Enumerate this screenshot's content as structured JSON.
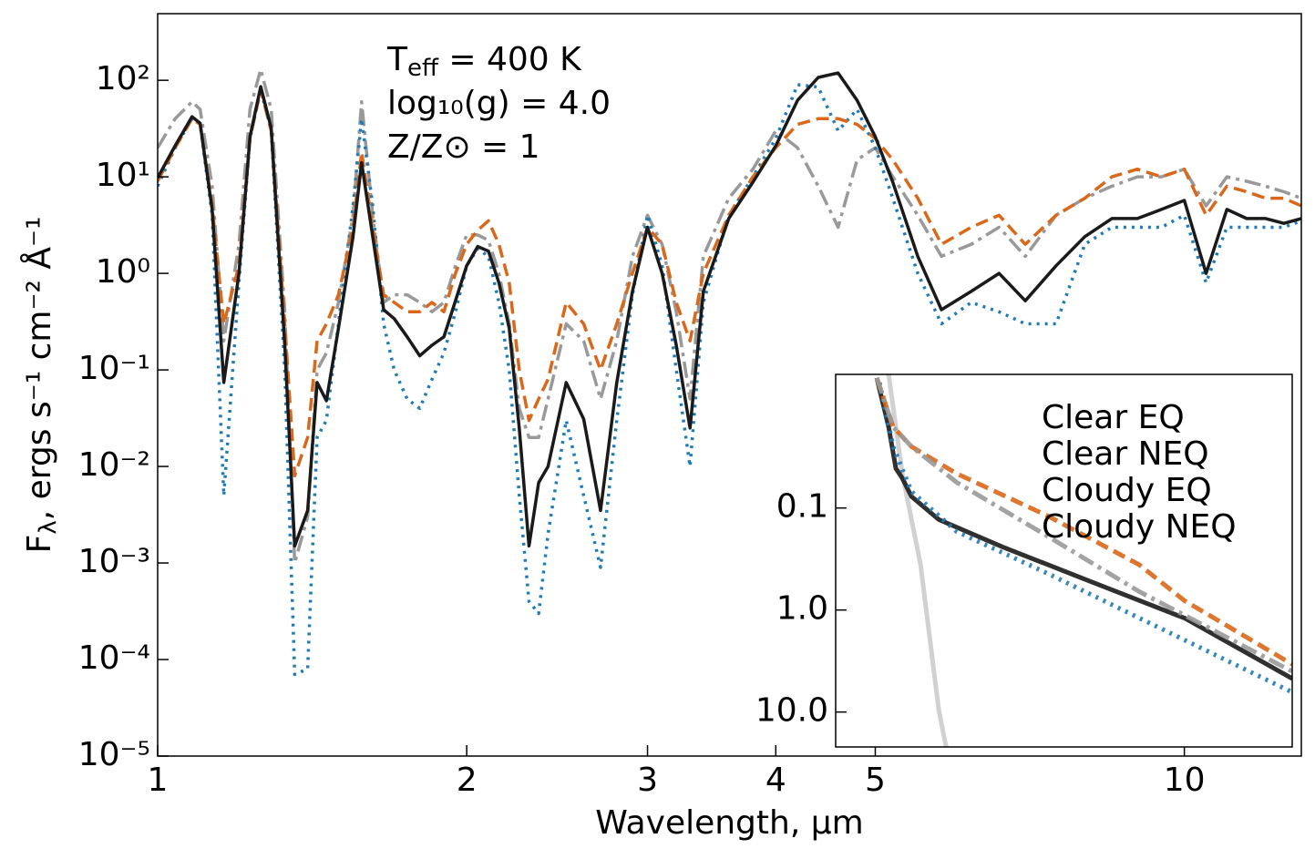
{
  "chart_data": [
    {
      "type": "line",
      "xscale": "log",
      "yscale": "log",
      "xlabel": "Wavelength, μm",
      "ylabel": [
        "F",
        "λ",
        ", ergs s⁻¹ cm⁻² Å⁻¹"
      ],
      "annotations": [
        [
          "T",
          "eff",
          " = 400 K"
        ],
        [
          "log₁₀(g) = 4.0"
        ],
        [
          "Z/Z⊙ = 1"
        ]
      ],
      "xlim": [
        1,
        13
      ],
      "ylim": [
        1e-05,
        490
      ],
      "xticks": [
        1,
        2,
        3,
        4,
        5,
        10
      ],
      "yticks": [
        {
          "value": 1e-05,
          "label": "10⁻⁵"
        },
        {
          "value": 0.0001,
          "label": "10⁻⁴"
        },
        {
          "value": 0.001,
          "label": "10⁻³"
        },
        {
          "value": 0.01,
          "label": "10⁻²"
        },
        {
          "value": 0.1,
          "label": "10⁻¹"
        },
        {
          "value": 1,
          "label": "10⁰"
        },
        {
          "value": 10,
          "label": "10¹"
        },
        {
          "value": 100,
          "label": "10²"
        }
      ],
      "x": [
        1.0,
        1.04,
        1.08,
        1.1,
        1.13,
        1.16,
        1.2,
        1.23,
        1.26,
        1.29,
        1.33,
        1.36,
        1.4,
        1.43,
        1.46,
        1.5,
        1.55,
        1.58,
        1.62,
        1.66,
        1.7,
        1.75,
        1.8,
        1.85,
        1.9,
        1.95,
        2.0,
        2.05,
        2.1,
        2.15,
        2.2,
        2.25,
        2.3,
        2.35,
        2.4,
        2.5,
        2.6,
        2.7,
        2.8,
        2.9,
        3.0,
        3.1,
        3.2,
        3.3,
        3.4,
        3.6,
        3.8,
        4.0,
        4.2,
        4.4,
        4.6,
        4.8,
        5.0,
        5.2,
        5.5,
        5.8,
        6.2,
        6.6,
        7.0,
        7.5,
        8.0,
        8.5,
        9.0,
        9.5,
        10,
        10.5,
        11,
        11.5,
        12,
        12.5,
        13
      ],
      "series": [
        {
          "color": "#999999",
          "linestyle": "dashdot",
          "values": [
            20,
            40,
            60,
            50,
            8,
            0.2,
            2,
            50,
            130,
            50,
            0.4,
            0.001,
            0.003,
            0.1,
            0.15,
            0.5,
            4,
            60,
            4,
            0.5,
            0.6,
            0.6,
            0.5,
            0.4,
            0.5,
            1.2,
            2.5,
            2.5,
            2.2,
            1,
            0.3,
            0.04,
            0.02,
            0.02,
            0.05,
            0.3,
            0.2,
            0.05,
            0.2,
            1.5,
            4,
            2,
            0.4,
            0.05,
            1.5,
            6,
            12,
            30,
            20,
            8,
            3,
            15,
            20,
            10,
            4,
            1.5,
            2,
            3,
            1.5,
            4,
            6,
            8,
            10,
            10,
            12,
            5,
            10,
            9,
            8,
            7,
            6
          ]
        },
        {
          "color": "#1f7bb6",
          "linestyle": "dotted",
          "values": [
            8,
            20,
            40,
            35,
            4,
            0.005,
            0.8,
            25,
            80,
            30,
            0.1,
            7e-05,
            8e-05,
            0.02,
            0.03,
            0.3,
            5,
            40,
            5,
            0.3,
            0.1,
            0.05,
            0.04,
            0.08,
            0.15,
            0.4,
            1.2,
            1.8,
            1.5,
            0.5,
            0.1,
            0.005,
            0.0004,
            0.0003,
            0.002,
            0.03,
            0.005,
            0.0009,
            0.03,
            0.6,
            4,
            1.2,
            0.1,
            0.01,
            0.5,
            4,
            10,
            25,
            90,
            85,
            30,
            50,
            20,
            6,
            1,
            0.3,
            0.5,
            0.4,
            0.3,
            0.3,
            2,
            3,
            3,
            3,
            4,
            0.8,
            3,
            3,
            3,
            3,
            3.5
          ]
        },
        {
          "color": "#d9681a",
          "linestyle": "dashed",
          "values": [
            9,
            20,
            40,
            35,
            5,
            0.3,
            1.2,
            25,
            80,
            30,
            0.3,
            0.008,
            0.02,
            0.2,
            0.3,
            0.6,
            3,
            18,
            3,
            0.6,
            0.5,
            0.4,
            0.4,
            0.5,
            0.4,
            1,
            2,
            2.8,
            3.5,
            2,
            0.8,
            0.1,
            0.03,
            0.05,
            0.08,
            0.5,
            0.3,
            0.1,
            0.3,
            1,
            3,
            2,
            0.5,
            0.2,
            1,
            4,
            10,
            20,
            35,
            40,
            40,
            35,
            25,
            15,
            6,
            2,
            3,
            4,
            2,
            4,
            6,
            10,
            12,
            10,
            12,
            4,
            8,
            7,
            6,
            6,
            5
          ]
        },
        {
          "color": "#1a1a1a",
          "linestyle": "solid",
          "values": [
            9.8,
            21,
            42,
            36,
            4.6,
            0.074,
            1.0,
            26,
            86,
            32,
            0.18,
            0.0015,
            0.0035,
            0.074,
            0.048,
            0.27,
            2.4,
            14,
            2.4,
            0.42,
            0.34,
            0.22,
            0.14,
            0.18,
            0.22,
            0.52,
            1.2,
            1.9,
            1.7,
            0.8,
            0.27,
            0.025,
            0.0015,
            0.0068,
            0.01,
            0.074,
            0.031,
            0.0035,
            0.074,
            0.65,
            3.0,
            1.0,
            0.18,
            0.025,
            0.65,
            3.7,
            8.8,
            21,
            62,
            107,
            119,
            62,
            26,
            8.8,
            1.5,
            0.42,
            0.65,
            1.0,
            0.52,
            1.2,
            2.4,
            3.7,
            3.7,
            4.6,
            5.7,
            1.0,
            4.6,
            3.7,
            3.7,
            3.3,
            3.7
          ]
        }
      ]
    },
    {
      "type": "line",
      "yscale": "log",
      "legend": "upper right",
      "xlim": [
        0,
        100
      ],
      "ylim": [
        22,
        0.0049
      ],
      "yticks": [
        0.1,
        {
          "value": 1,
          "label": "1.0"
        },
        {
          "value": 10,
          "label": "10.0"
        }
      ],
      "series": [
        {
          "color": "#cccccc",
          "linestyle": "solid",
          "x": [
            11.6,
            14.6,
            18.6,
            22.6,
            24.2
          ],
          "values": [
            0.0049,
            0.046,
            0.36,
            9.6,
            22
          ]
        },
        {
          "name": "Clear EQ",
          "color": "#1a1a1a",
          "linestyle": "solid",
          "x": [
            9.0,
            11.6,
            13.2,
            14.6,
            16.6,
            22.6,
            36.5,
            56.5,
            76.4,
            100
          ],
          "values": [
            0.0053,
            0.016,
            0.041,
            0.051,
            0.077,
            0.13,
            0.24,
            0.54,
            1.2,
            4.7
          ]
        },
        {
          "name": "Clear NEQ",
          "color": "#1f7bb6",
          "linestyle": "dotted",
          "x": [
            9.6,
            12.6,
            16.6,
            26.5,
            46.5,
            66.5,
            100
          ],
          "values": [
            0.0059,
            0.025,
            0.069,
            0.17,
            0.44,
            1.2,
            6.4
          ]
        },
        {
          "name": "Cloudy EQ",
          "color": "#d9681a",
          "linestyle": "dashed",
          "x": [
            9.0,
            12.6,
            16.6,
            26.5,
            46.5,
            66.5,
            76.4,
            100
          ],
          "values": [
            0.0053,
            0.016,
            0.025,
            0.046,
            0.12,
            0.36,
            0.81,
            3.4
          ]
        },
        {
          "name": "Cloudy NEQ",
          "color": "#999999",
          "linestyle": "dashdot",
          "x": [
            9.0,
            12.6,
            16.6,
            26.5,
            46.5,
            66.5,
            100
          ],
          "values": [
            0.0053,
            0.016,
            0.025,
            0.056,
            0.19,
            0.66,
            4.0
          ]
        }
      ]
    }
  ]
}
